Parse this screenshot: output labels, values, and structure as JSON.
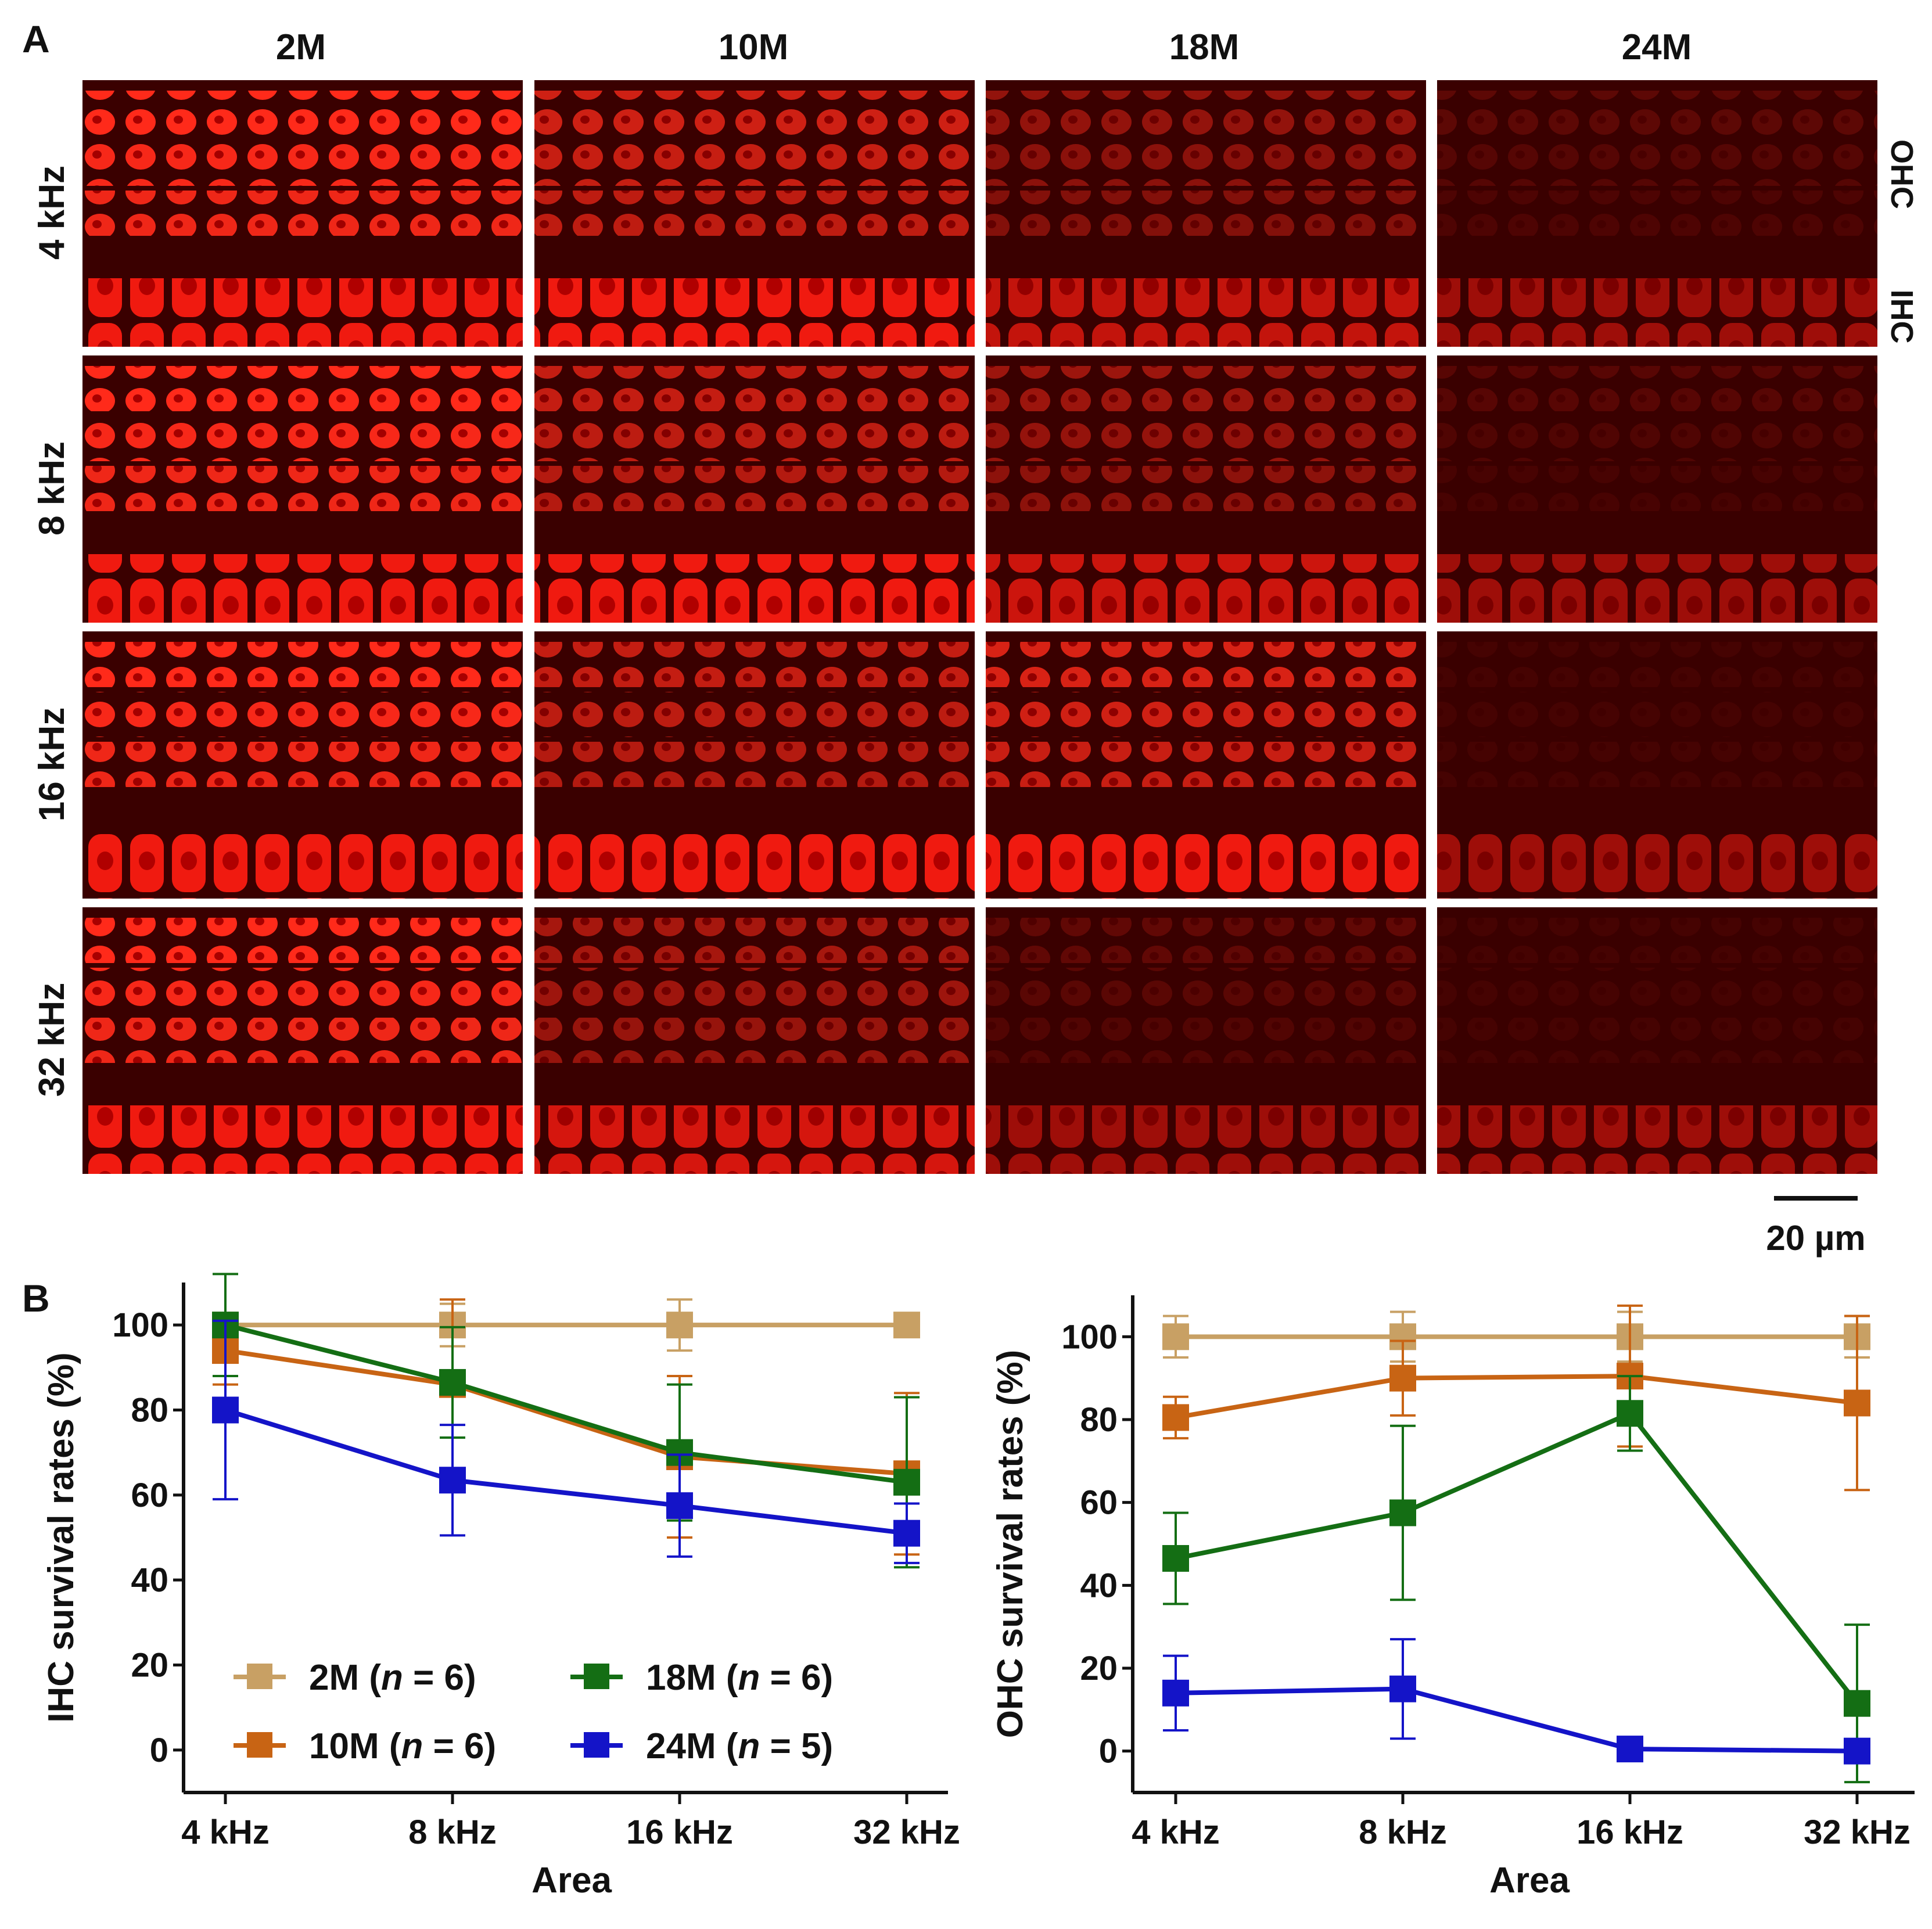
{
  "figure": {
    "panel_a_label": "A",
    "panel_b_label": "B",
    "columns": [
      "2M",
      "10M",
      "18M",
      "24M"
    ],
    "rows": [
      "4 kHz",
      "8 kHz",
      "16 kHz",
      "32 kHz"
    ],
    "cell_labels": {
      "ohc": "OHC",
      "ihc": "IHC"
    },
    "scale_bar": "20 µm",
    "image_color": "#e00000",
    "image_densities": [
      [
        1.0,
        0.75,
        0.45,
        0.18
      ],
      [
        1.0,
        0.7,
        0.5,
        0.15
      ],
      [
        1.0,
        0.7,
        0.8,
        0.05
      ],
      [
        1.0,
        0.55,
        0.2,
        0.02
      ]
    ]
  },
  "chart_data": [
    {
      "type": "line",
      "title": "",
      "xlabel": "Area",
      "ylabel": "IHC survival rates (%)",
      "categories": [
        "4 kHz",
        "8 kHz",
        "16 kHz",
        "32 kHz"
      ],
      "ylim": [
        -10,
        110
      ],
      "yticks": [
        0,
        20,
        40,
        60,
        80,
        100
      ],
      "legend_position": "bottom-left",
      "series": [
        {
          "name": "2M",
          "n": "6",
          "color": "#c8a064",
          "values": [
            100,
            100,
            100,
            100
          ],
          "errors": [
            0,
            5,
            6,
            0
          ]
        },
        {
          "name": "10M",
          "n": "6",
          "color": "#c86414",
          "values": [
            94,
            86,
            69,
            65
          ],
          "errors": [
            8,
            20,
            19,
            19
          ]
        },
        {
          "name": "18M",
          "n": "6",
          "color": "#146e14",
          "values": [
            100,
            86.5,
            70,
            63
          ],
          "errors": [
            12,
            13,
            16,
            20
          ]
        },
        {
          "name": "24M",
          "n": "5",
          "color": "#1414c8",
          "values": [
            80,
            63.5,
            57.5,
            51
          ],
          "errors": [
            21,
            13,
            12,
            7
          ]
        }
      ]
    },
    {
      "type": "line",
      "title": "",
      "xlabel": "Area",
      "ylabel": "OHC survival rates (%)",
      "categories": [
        "4 kHz",
        "8 kHz",
        "16 kHz",
        "32 kHz"
      ],
      "ylim": [
        -10,
        110
      ],
      "yticks": [
        0,
        20,
        40,
        60,
        80,
        100
      ],
      "series": [
        {
          "name": "2M",
          "n": "6",
          "color": "#c8a064",
          "values": [
            100,
            100,
            100,
            100
          ],
          "errors": [
            5,
            6,
            6,
            5
          ]
        },
        {
          "name": "10M",
          "n": "6",
          "color": "#c86414",
          "values": [
            80.5,
            90,
            90.5,
            84
          ],
          "errors": [
            5,
            9,
            17,
            21
          ]
        },
        {
          "name": "18M",
          "n": "6",
          "color": "#146e14",
          "values": [
            46.5,
            57.5,
            81.5,
            11.5
          ],
          "errors": [
            11,
            21,
            9,
            19
          ]
        },
        {
          "name": "24M",
          "n": "5",
          "color": "#1414c8",
          "values": [
            14,
            15,
            0.5,
            0
          ],
          "errors": [
            9,
            12,
            0,
            0
          ]
        }
      ]
    }
  ]
}
